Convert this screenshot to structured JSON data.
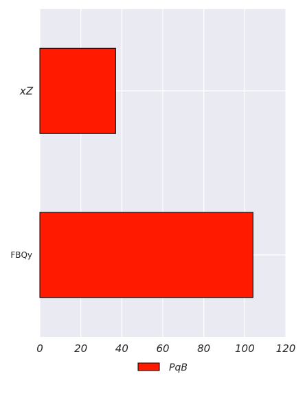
{
  "chart_data": {
    "type": "bar",
    "orientation": "horizontal",
    "categories": [
      "xZ",
      "FBQy"
    ],
    "series": [
      {
        "name": "PqB",
        "values": [
          37,
          104
        ],
        "color": "#ff1a00"
      }
    ],
    "xlim": [
      0,
      120
    ],
    "xticks": [
      "0",
      "20",
      "40",
      "60",
      "80",
      "100",
      "120"
    ],
    "grid": true,
    "legend_position": "bottom-center",
    "plot_background": "#eaeaf2",
    "gridline_color": "#ffffff"
  }
}
